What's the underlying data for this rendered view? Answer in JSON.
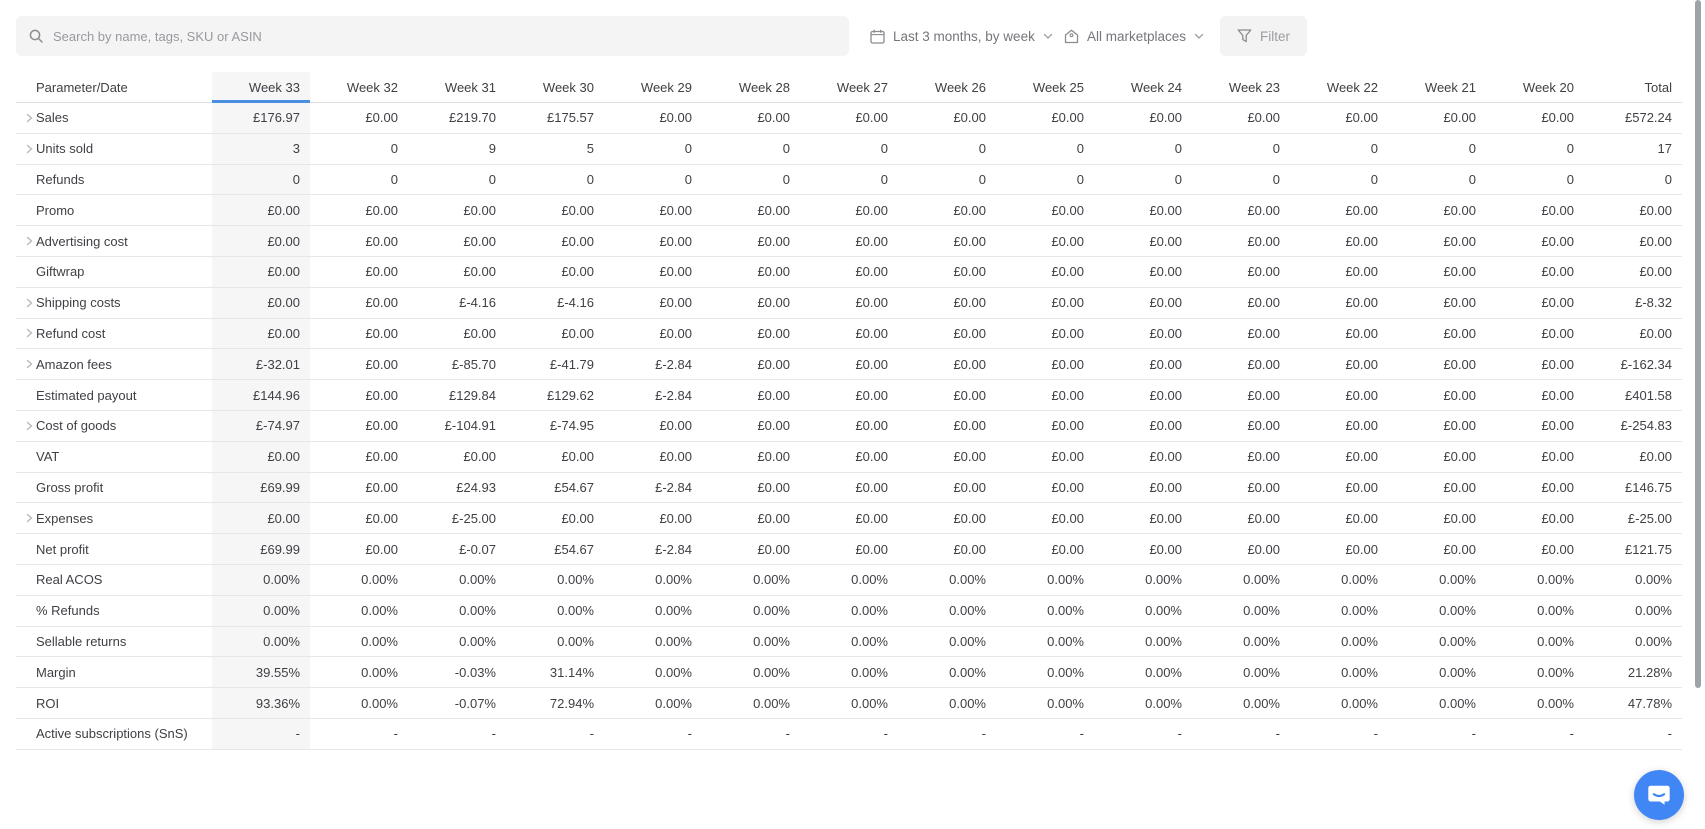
{
  "toolbar": {
    "search_placeholder": "Search by name, tags, SKU or ASIN",
    "date_range": "Last 3 months, by week",
    "marketplace": "All marketplaces",
    "filter_label": "Filter"
  },
  "colors": {
    "accent_blue": "#4a90e2",
    "chat_bubble_blue": "#4186f5",
    "highlight_bg": "#f6f6f7"
  },
  "table": {
    "param_header": "Parameter/Date",
    "highlighted_column": "Week 33",
    "columns": [
      "Week 33",
      "Week 32",
      "Week 31",
      "Week 30",
      "Week 29",
      "Week 28",
      "Week 27",
      "Week 26",
      "Week 25",
      "Week 24",
      "Week 23",
      "Week 22",
      "Week 21",
      "Week 20",
      "Total"
    ],
    "rows": [
      {
        "label": "Sales",
        "expandable": true,
        "values": [
          "£176.97",
          "£0.00",
          "£219.70",
          "£175.57",
          "£0.00",
          "£0.00",
          "£0.00",
          "£0.00",
          "£0.00",
          "£0.00",
          "£0.00",
          "£0.00",
          "£0.00",
          "£0.00",
          "£572.24"
        ]
      },
      {
        "label": "Units sold",
        "expandable": true,
        "values": [
          "3",
          "0",
          "9",
          "5",
          "0",
          "0",
          "0",
          "0",
          "0",
          "0",
          "0",
          "0",
          "0",
          "0",
          "17"
        ]
      },
      {
        "label": "Refunds",
        "expandable": false,
        "values": [
          "0",
          "0",
          "0",
          "0",
          "0",
          "0",
          "0",
          "0",
          "0",
          "0",
          "0",
          "0",
          "0",
          "0",
          "0"
        ]
      },
      {
        "label": "Promo",
        "expandable": false,
        "values": [
          "£0.00",
          "£0.00",
          "£0.00",
          "£0.00",
          "£0.00",
          "£0.00",
          "£0.00",
          "£0.00",
          "£0.00",
          "£0.00",
          "£0.00",
          "£0.00",
          "£0.00",
          "£0.00",
          "£0.00"
        ]
      },
      {
        "label": "Advertising cost",
        "expandable": true,
        "values": [
          "£0.00",
          "£0.00",
          "£0.00",
          "£0.00",
          "£0.00",
          "£0.00",
          "£0.00",
          "£0.00",
          "£0.00",
          "£0.00",
          "£0.00",
          "£0.00",
          "£0.00",
          "£0.00",
          "£0.00"
        ]
      },
      {
        "label": "Giftwrap",
        "expandable": false,
        "values": [
          "£0.00",
          "£0.00",
          "£0.00",
          "£0.00",
          "£0.00",
          "£0.00",
          "£0.00",
          "£0.00",
          "£0.00",
          "£0.00",
          "£0.00",
          "£0.00",
          "£0.00",
          "£0.00",
          "£0.00"
        ]
      },
      {
        "label": "Shipping costs",
        "expandable": true,
        "values": [
          "£0.00",
          "£0.00",
          "£-4.16",
          "£-4.16",
          "£0.00",
          "£0.00",
          "£0.00",
          "£0.00",
          "£0.00",
          "£0.00",
          "£0.00",
          "£0.00",
          "£0.00",
          "£0.00",
          "£-8.32"
        ]
      },
      {
        "label": "Refund cost",
        "expandable": true,
        "values": [
          "£0.00",
          "£0.00",
          "£0.00",
          "£0.00",
          "£0.00",
          "£0.00",
          "£0.00",
          "£0.00",
          "£0.00",
          "£0.00",
          "£0.00",
          "£0.00",
          "£0.00",
          "£0.00",
          "£0.00"
        ]
      },
      {
        "label": "Amazon fees",
        "expandable": true,
        "values": [
          "£-32.01",
          "£0.00",
          "£-85.70",
          "£-41.79",
          "£-2.84",
          "£0.00",
          "£0.00",
          "£0.00",
          "£0.00",
          "£0.00",
          "£0.00",
          "£0.00",
          "£0.00",
          "£0.00",
          "£-162.34"
        ]
      },
      {
        "label": "Estimated payout",
        "expandable": false,
        "values": [
          "£144.96",
          "£0.00",
          "£129.84",
          "£129.62",
          "£-2.84",
          "£0.00",
          "£0.00",
          "£0.00",
          "£0.00",
          "£0.00",
          "£0.00",
          "£0.00",
          "£0.00",
          "£0.00",
          "£401.58"
        ]
      },
      {
        "label": "Cost of goods",
        "expandable": true,
        "values": [
          "£-74.97",
          "£0.00",
          "£-104.91",
          "£-74.95",
          "£0.00",
          "£0.00",
          "£0.00",
          "£0.00",
          "£0.00",
          "£0.00",
          "£0.00",
          "£0.00",
          "£0.00",
          "£0.00",
          "£-254.83"
        ]
      },
      {
        "label": "VAT",
        "expandable": false,
        "values": [
          "£0.00",
          "£0.00",
          "£0.00",
          "£0.00",
          "£0.00",
          "£0.00",
          "£0.00",
          "£0.00",
          "£0.00",
          "£0.00",
          "£0.00",
          "£0.00",
          "£0.00",
          "£0.00",
          "£0.00"
        ]
      },
      {
        "label": "Gross profit",
        "expandable": false,
        "values": [
          "£69.99",
          "£0.00",
          "£24.93",
          "£54.67",
          "£-2.84",
          "£0.00",
          "£0.00",
          "£0.00",
          "£0.00",
          "£0.00",
          "£0.00",
          "£0.00",
          "£0.00",
          "£0.00",
          "£146.75"
        ]
      },
      {
        "label": "Expenses",
        "expandable": true,
        "values": [
          "£0.00",
          "£0.00",
          "£-25.00",
          "£0.00",
          "£0.00",
          "£0.00",
          "£0.00",
          "£0.00",
          "£0.00",
          "£0.00",
          "£0.00",
          "£0.00",
          "£0.00",
          "£0.00",
          "£-25.00"
        ]
      },
      {
        "label": "Net profit",
        "expandable": false,
        "values": [
          "£69.99",
          "£0.00",
          "£-0.07",
          "£54.67",
          "£-2.84",
          "£0.00",
          "£0.00",
          "£0.00",
          "£0.00",
          "£0.00",
          "£0.00",
          "£0.00",
          "£0.00",
          "£0.00",
          "£121.75"
        ]
      },
      {
        "label": "Real ACOS",
        "expandable": false,
        "values": [
          "0.00%",
          "0.00%",
          "0.00%",
          "0.00%",
          "0.00%",
          "0.00%",
          "0.00%",
          "0.00%",
          "0.00%",
          "0.00%",
          "0.00%",
          "0.00%",
          "0.00%",
          "0.00%",
          "0.00%"
        ]
      },
      {
        "label": "% Refunds",
        "expandable": false,
        "values": [
          "0.00%",
          "0.00%",
          "0.00%",
          "0.00%",
          "0.00%",
          "0.00%",
          "0.00%",
          "0.00%",
          "0.00%",
          "0.00%",
          "0.00%",
          "0.00%",
          "0.00%",
          "0.00%",
          "0.00%"
        ]
      },
      {
        "label": "Sellable returns",
        "expandable": false,
        "values": [
          "0.00%",
          "0.00%",
          "0.00%",
          "0.00%",
          "0.00%",
          "0.00%",
          "0.00%",
          "0.00%",
          "0.00%",
          "0.00%",
          "0.00%",
          "0.00%",
          "0.00%",
          "0.00%",
          "0.00%"
        ]
      },
      {
        "label": "Margin",
        "expandable": false,
        "values": [
          "39.55%",
          "0.00%",
          "-0.03%",
          "31.14%",
          "0.00%",
          "0.00%",
          "0.00%",
          "0.00%",
          "0.00%",
          "0.00%",
          "0.00%",
          "0.00%",
          "0.00%",
          "0.00%",
          "21.28%"
        ]
      },
      {
        "label": "ROI",
        "expandable": false,
        "values": [
          "93.36%",
          "0.00%",
          "-0.07%",
          "72.94%",
          "0.00%",
          "0.00%",
          "0.00%",
          "0.00%",
          "0.00%",
          "0.00%",
          "0.00%",
          "0.00%",
          "0.00%",
          "0.00%",
          "47.78%"
        ]
      },
      {
        "label": "Active subscriptions (SnS)",
        "expandable": false,
        "values": [
          "-",
          "-",
          "-",
          "-",
          "-",
          "-",
          "-",
          "-",
          "-",
          "-",
          "-",
          "-",
          "-",
          "-",
          "-"
        ]
      }
    ]
  }
}
